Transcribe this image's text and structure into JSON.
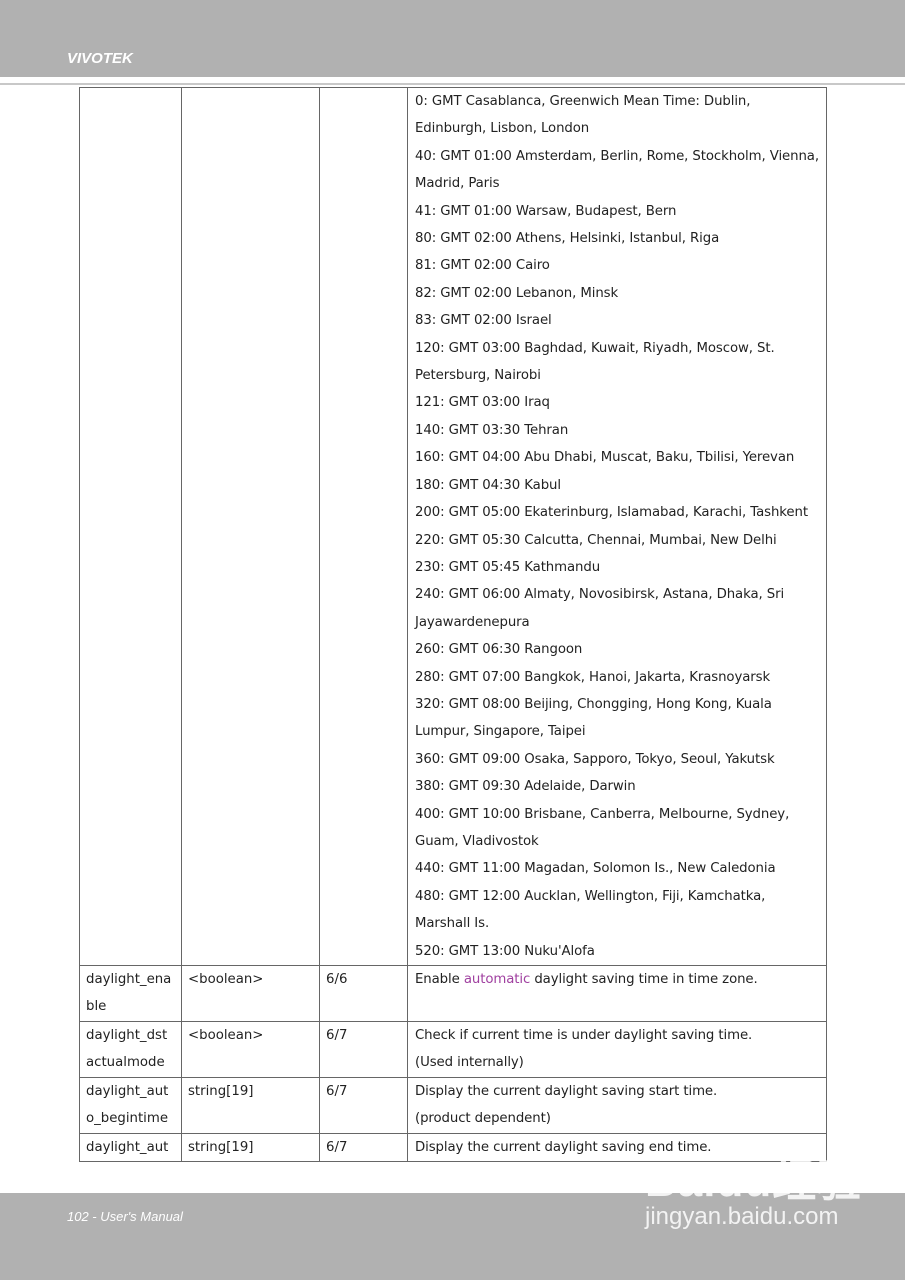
{
  "header": {
    "brand": "VIVOTEK"
  },
  "footer": {
    "page_label": "102 - User's Manual"
  },
  "watermark": {
    "logo": "Baidu经验",
    "url": "jingyan.baidu.com"
  },
  "timezone_entries": [
    "0: GMT Casablanca, Greenwich Mean Time: Dublin, Edinburgh, Lisbon, London",
    "40: GMT 01:00 Amsterdam, Berlin, Rome, Stockholm, Vienna, Madrid, Paris",
    "41: GMT 01:00 Warsaw, Budapest, Bern",
    "80: GMT 02:00 Athens, Helsinki, Istanbul, Riga",
    "81: GMT 02:00 Cairo",
    "82: GMT 02:00 Lebanon, Minsk",
    "83: GMT 02:00 Israel",
    "120: GMT 03:00 Baghdad, Kuwait, Riyadh, Moscow, St. Petersburg, Nairobi",
    "121: GMT 03:00 Iraq",
    "140: GMT 03:30 Tehran",
    "160: GMT 04:00 Abu Dhabi, Muscat, Baku, Tbilisi, Yerevan",
    "180: GMT 04:30 Kabul",
    "200: GMT 05:00 Ekaterinburg, Islamabad, Karachi, Tashkent",
    "220: GMT 05:30 Calcutta, Chennai, Mumbai, New Delhi",
    "230: GMT 05:45 Kathmandu",
    "240: GMT 06:00 Almaty, Novosibirsk, Astana, Dhaka, Sri Jayawardenepura",
    "260: GMT 06:30 Rangoon",
    "280: GMT 07:00 Bangkok, Hanoi, Jakarta, Krasnoyarsk",
    "320: GMT 08:00 Beijing, Chongging, Hong Kong, Kuala Lumpur, Singapore, Taipei",
    "360: GMT 09:00 Osaka, Sapporo, Tokyo, Seoul, Yakutsk",
    "380: GMT 09:30 Adelaide, Darwin",
    "400: GMT 10:00 Brisbane, Canberra, Melbourne, Sydney, Guam, Vladivostok",
    "440: GMT 11:00 Magadan, Solomon Is., New Caledonia",
    "480: GMT 12:00 Aucklan, Wellington, Fiji, Kamchatka, Marshall Is.",
    "520: GMT 13:00 Nuku'Alofa"
  ],
  "rows": [
    {
      "name": "daylight_enable",
      "type": "<boolean>",
      "security": "6/6",
      "desc_before": "Enable ",
      "desc_highlight": "automatic",
      "desc_after": " daylight saving time in time zone.",
      "highlight_color": "#a040a0"
    },
    {
      "name": "daylight_dstactualmode",
      "type": "<boolean>",
      "security": "6/7",
      "desc": "Check if current time is under daylight saving time.",
      "desc2": "(Used internally)"
    },
    {
      "name": "daylight_auto_begintime",
      "type": "string[19]",
      "security": "6/7",
      "desc": "Display the current daylight saving start time.",
      "desc2": "(product dependent)"
    },
    {
      "name": "daylight_aut",
      "type": "string[19]",
      "security": "6/7",
      "desc": "Display the current daylight saving end time."
    }
  ]
}
